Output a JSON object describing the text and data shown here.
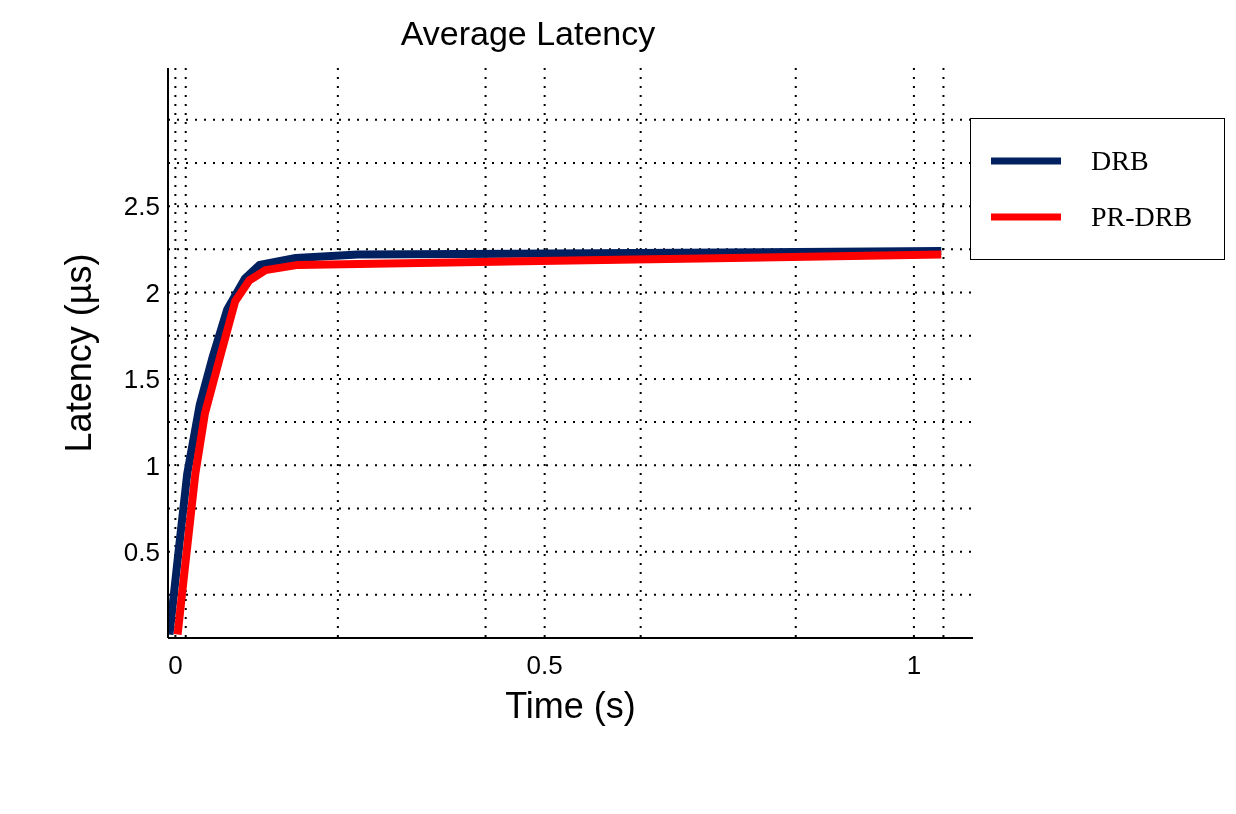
{
  "chart_data": {
    "type": "line",
    "title": "Average Latency",
    "xlabel": "Time  (s)",
    "ylabel": "Latency (µs)",
    "xlim": [
      -0.01,
      1.08
    ],
    "ylim": [
      0,
      3.3
    ],
    "xticks": [
      0,
      {
        "value": 0.014,
        "label": null
      },
      {
        "value": 0.22,
        "label": null
      },
      {
        "value": 0.42,
        "label": null
      },
      0.5,
      {
        "value": 0.63,
        "label": null
      },
      {
        "value": 0.84,
        "label": null
      },
      1,
      {
        "value": 1.04,
        "label": null
      }
    ],
    "yticks": [
      {
        "value": 0.25,
        "label": null
      },
      0.5,
      {
        "value": 0.75,
        "label": null
      },
      1,
      {
        "value": 1.25,
        "label": null
      },
      1.5,
      {
        "value": 1.75,
        "label": null
      },
      2,
      {
        "value": 2.25,
        "label": null
      },
      2.5,
      {
        "value": 2.75,
        "label": null
      },
      {
        "value": 3,
        "label": null
      }
    ],
    "grid": true,
    "legend": "right",
    "marker": "none",
    "line_style": "solid",
    "series": [
      {
        "name": "DRB",
        "color": "#002060",
        "x": [
          -0.008,
          0.003,
          0.016,
          0.033,
          0.05,
          0.07,
          0.094,
          0.114,
          0.163,
          0.247,
          1.037
        ],
        "values": [
          0.02,
          0.45,
          0.95,
          1.35,
          1.62,
          1.9,
          2.08,
          2.16,
          2.2,
          2.22,
          2.24
        ]
      },
      {
        "name": "PR-DRB",
        "color": "#ff0000",
        "x": [
          0.003,
          0.014,
          0.027,
          0.04,
          0.06,
          0.081,
          0.1,
          0.122,
          0.166,
          1.037
        ],
        "values": [
          0.02,
          0.45,
          0.95,
          1.3,
          1.62,
          1.95,
          2.07,
          2.13,
          2.16,
          2.22
        ]
      }
    ]
  }
}
